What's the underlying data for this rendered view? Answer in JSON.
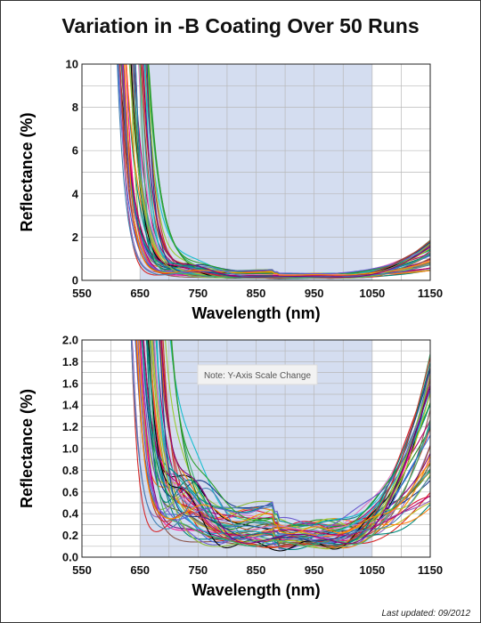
{
  "page": {
    "title": "Variation in -B Coating Over 50 Runs",
    "footer": "Last updated: 09/2012"
  },
  "colors": {
    "band": "#d4ddf0",
    "grid": "#b8b8b8",
    "note_bg": "#f2f2f2",
    "palette": [
      "#1f77b4",
      "#d62728",
      "#2ca02c",
      "#ff7f0e",
      "#9467bd",
      "#8c564b",
      "#e377c2",
      "#17becf",
      "#bcbd22",
      "#000000",
      "#1a3a8a",
      "#b5006e",
      "#00897b",
      "#8fbc3f",
      "#6a5acd",
      "#c0392b",
      "#3cb371",
      "#ff8c00",
      "#4682b4",
      "#800080",
      "#20b2aa",
      "#556b2f",
      "#dc143c",
      "#4169e1",
      "#9acd32",
      "#ff1493",
      "#008b8b",
      "#a0522d",
      "#708090",
      "#228b22"
    ]
  },
  "chart_data": [
    {
      "type": "line",
      "title": "",
      "xlabel": "Wavelength (nm)",
      "ylabel": "Reflectance (%)",
      "xlim": [
        550,
        1150
      ],
      "ylim": [
        0,
        10
      ],
      "xticks": [
        "550",
        "650",
        "750",
        "850",
        "950",
        "1050",
        "1150"
      ],
      "yticks": [
        "0",
        "2",
        "4",
        "6",
        "8",
        "10"
      ],
      "ytick_values": [
        0,
        2,
        4,
        6,
        8,
        10
      ],
      "shaded_band": [
        650,
        1050
      ],
      "grid": true,
      "series_count": 50,
      "note": ""
    },
    {
      "type": "line",
      "title": "",
      "xlabel": "Wavelength (nm)",
      "ylabel": "Reflectance (%)",
      "xlim": [
        550,
        1150
      ],
      "ylim": [
        0,
        2.0
      ],
      "xticks": [
        "550",
        "650",
        "750",
        "850",
        "950",
        "1050",
        "1150"
      ],
      "yticks": [
        "0.0",
        "0.2",
        "0.4",
        "0.6",
        "0.8",
        "1.0",
        "1.2",
        "1.4",
        "1.6",
        "1.8",
        "2.0"
      ],
      "ytick_values": [
        0,
        0.2,
        0.4,
        0.6,
        0.8,
        1.0,
        1.2,
        1.4,
        1.6,
        1.8,
        2.0
      ],
      "shaded_band": [
        650,
        1050
      ],
      "grid": true,
      "series_count": 50,
      "note": "Note: Y-Axis Scale Change"
    }
  ]
}
